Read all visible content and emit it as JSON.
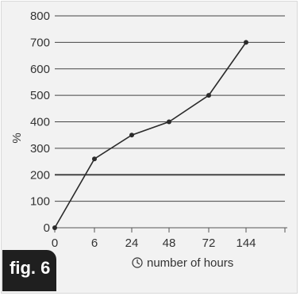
{
  "figure_label": "fig. 6",
  "chart_data": {
    "type": "line",
    "title": "",
    "xlabel": "number of hours",
    "ylabel": "%",
    "categories": [
      "0",
      "6",
      "24",
      "48",
      "72",
      "144"
    ],
    "series": [
      {
        "values": [
          0,
          260,
          350,
          400,
          500,
          700
        ]
      }
    ],
    "ylim": [
      0,
      800
    ],
    "yticks": [
      0,
      100,
      200,
      300,
      400,
      500,
      600,
      700,
      800
    ],
    "grid": true,
    "emphasized_gridline": 200,
    "icons": {
      "xlabel_icon": "clock-icon"
    },
    "colors": {
      "line": "#2b2b2b",
      "grid": "#444444",
      "marker": "#2b2b2b",
      "background": "#f2f2f2",
      "badge": "#1f1f1f"
    }
  }
}
